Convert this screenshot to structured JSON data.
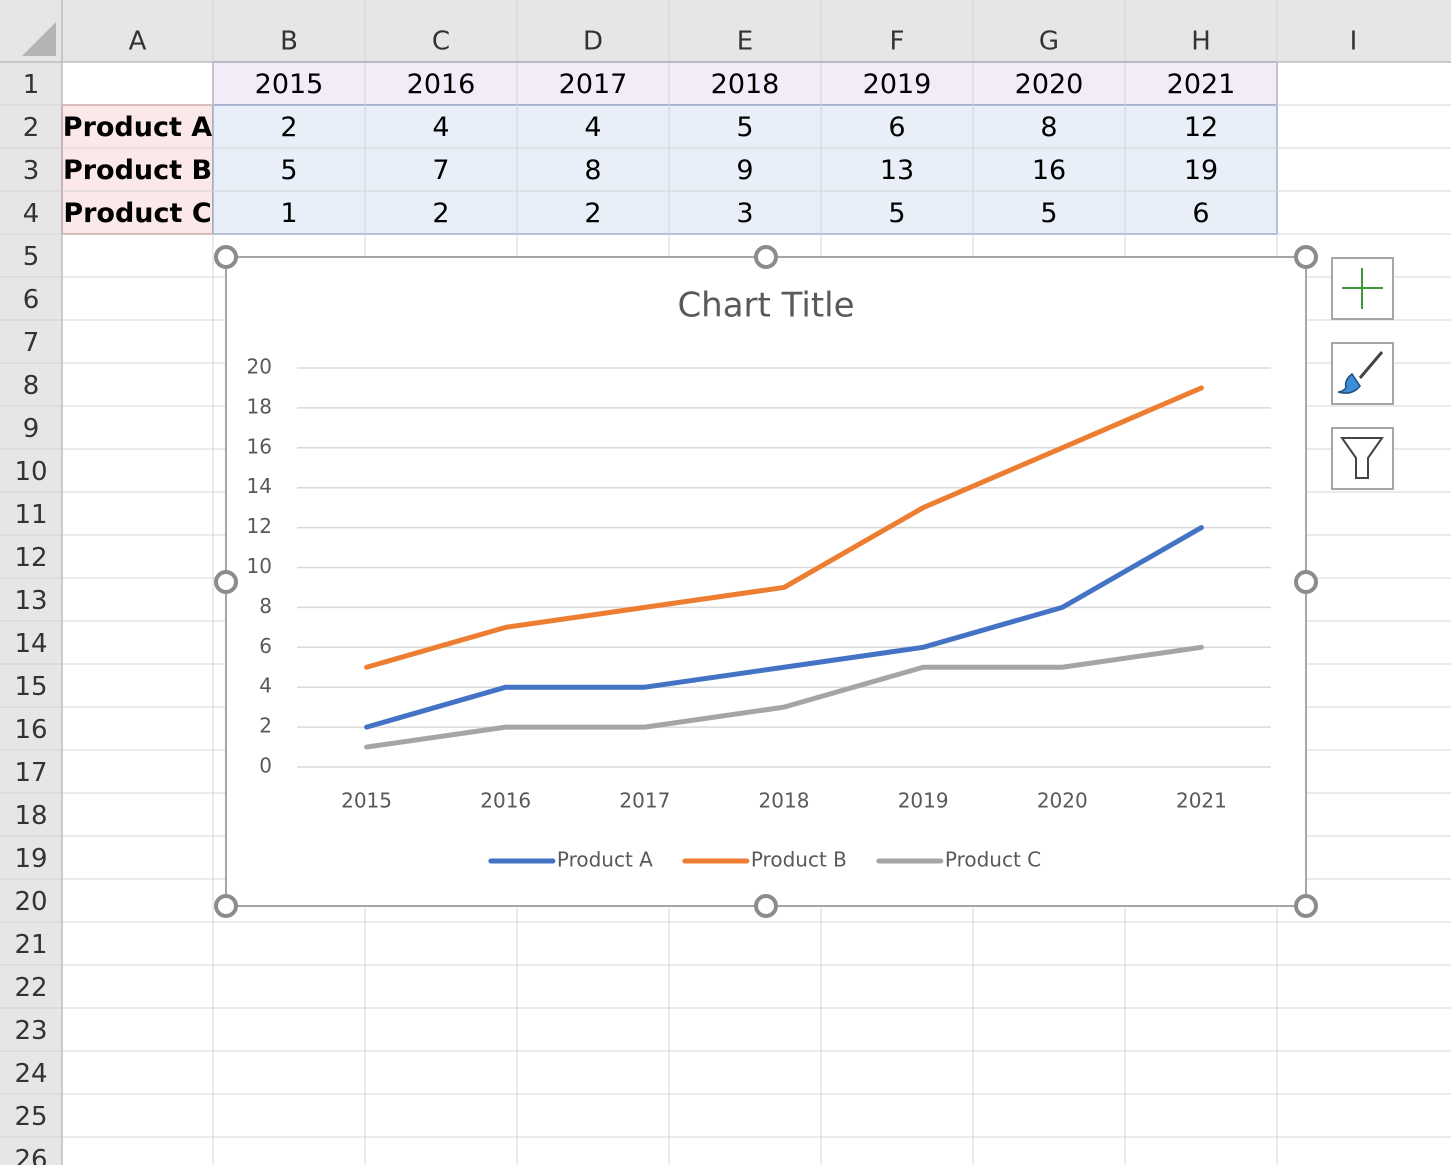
{
  "spreadsheet": {
    "columns": [
      "A",
      "B",
      "C",
      "D",
      "E",
      "F",
      "G",
      "H",
      "I"
    ],
    "rows": [
      1,
      2,
      3,
      4,
      5,
      6,
      7,
      8,
      9,
      10,
      11,
      12,
      13,
      14,
      15,
      16,
      17,
      18,
      19,
      20,
      21,
      22,
      23,
      24,
      25,
      26
    ],
    "header_row": [
      2015,
      2016,
      2017,
      2018,
      2019,
      2020,
      2021
    ],
    "table": [
      {
        "label": "Product A",
        "values": [
          2,
          4,
          4,
          5,
          6,
          8,
          12
        ]
      },
      {
        "label": "Product B",
        "values": [
          5,
          7,
          8,
          9,
          13,
          16,
          19
        ]
      },
      {
        "label": "Product C",
        "values": [
          1,
          2,
          2,
          3,
          5,
          5,
          6
        ]
      }
    ]
  },
  "chart_data": {
    "type": "line",
    "title": "Chart Title",
    "categories": [
      "2015",
      "2016",
      "2017",
      "2018",
      "2019",
      "2020",
      "2021"
    ],
    "series": [
      {
        "name": "Product A",
        "color": "#4472c4",
        "values": [
          2,
          4,
          4,
          5,
          6,
          8,
          12
        ]
      },
      {
        "name": "Product B",
        "color": "#ed7d31",
        "values": [
          5,
          7,
          8,
          9,
          13,
          16,
          19
        ]
      },
      {
        "name": "Product C",
        "color": "#a5a5a5",
        "values": [
          1,
          2,
          2,
          3,
          5,
          5,
          6
        ]
      }
    ],
    "ylim": [
      0,
      20
    ],
    "yticks": [
      0,
      2,
      4,
      6,
      8,
      10,
      12,
      14,
      16,
      18,
      20
    ],
    "grid": true,
    "legend": "bottom"
  }
}
